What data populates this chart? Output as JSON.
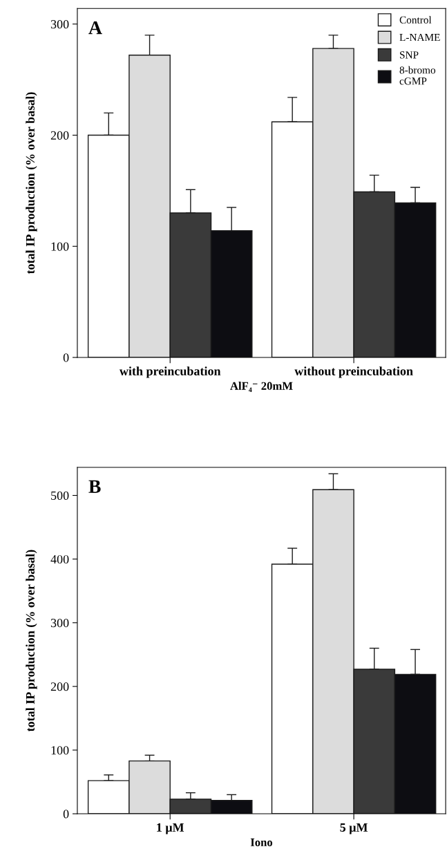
{
  "chart_data": [
    {
      "type": "bar",
      "title": null,
      "annotations": [
        "A"
      ],
      "ylabel": "total IP production (% over basal)",
      "xlabel": "AlF₄⁻ 20mM",
      "categories": [
        "with preincubation",
        "without preincubation"
      ],
      "series": [
        {
          "name": "Control",
          "color": "#ffffff",
          "values": [
            200,
            212
          ],
          "errors": [
            [
              200,
              220
            ],
            [
              212,
              234
            ]
          ]
        },
        {
          "name": "L-NAME",
          "color": "#dcdcdc",
          "values": [
            272,
            278
          ],
          "errors": [
            [
              272,
              290
            ],
            [
              278,
              290
            ]
          ]
        },
        {
          "name": "SNP",
          "color": "#3a3a3a",
          "values": [
            130,
            149
          ],
          "errors": [
            [
              130,
              151
            ],
            [
              149,
              164
            ]
          ]
        },
        {
          "name": "8-bromo\ncGMP",
          "color": "#0d0d12",
          "values": [
            114,
            139
          ],
          "errors": [
            [
              114,
              135
            ],
            [
              139,
              153
            ]
          ]
        }
      ],
      "ylim": [
        0,
        314
      ],
      "yticks": [
        0,
        100,
        200,
        300
      ],
      "legend": "top right",
      "grid": false
    },
    {
      "type": "bar",
      "annotations": [
        "B"
      ],
      "ylabel": "total IP production (% over basal)",
      "xlabel": "Iono",
      "categories": [
        "1 μM",
        "5 μM"
      ],
      "series": [
        {
          "color": "#ffffff",
          "values": [
            52,
            392
          ],
          "errors": [
            [
              52,
              61
            ],
            [
              392,
              417
            ]
          ]
        },
        {
          "color": "#dcdcdc",
          "values": [
            83,
            509
          ],
          "errors": [
            [
              83,
              92
            ],
            [
              509,
              534
            ]
          ]
        },
        {
          "color": "#3a3a3a",
          "values": [
            23,
            227
          ],
          "errors": [
            [
              23,
              33
            ],
            [
              227,
              260
            ]
          ]
        },
        {
          "color": "#0d0d12",
          "values": [
            21,
            219
          ],
          "errors": [
            [
              21,
              30
            ],
            [
              219,
              258
            ]
          ]
        }
      ],
      "ylim": [
        0,
        544
      ],
      "yticks": [
        0,
        100,
        200,
        300,
        400,
        500
      ],
      "legend": false,
      "grid": false
    }
  ]
}
